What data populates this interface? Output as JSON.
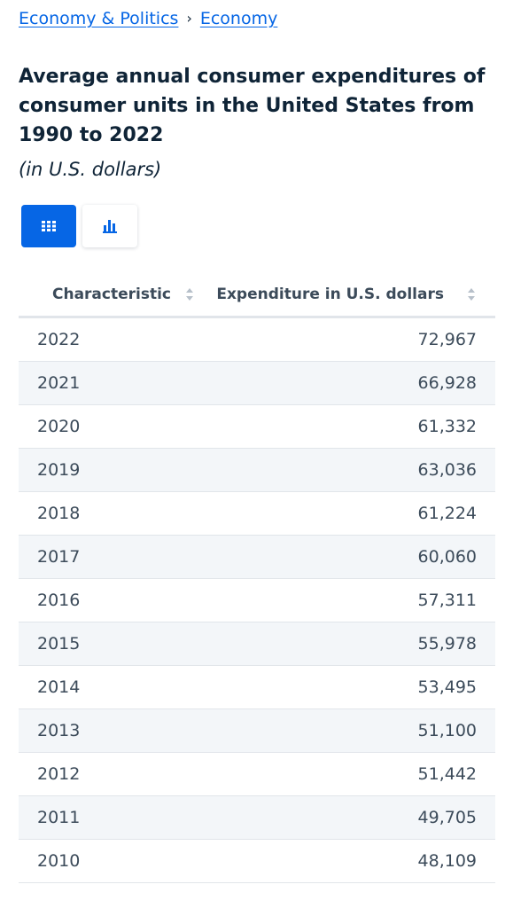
{
  "breadcrumb": {
    "items": [
      "Economy & Politics",
      "Economy"
    ],
    "separator": "›"
  },
  "title": "Average annual consumer expenditures of consumer units in the United States from 1990 to 2022",
  "subtitle": "(in U.S. dollars)",
  "view_toggle": {
    "active": "table",
    "buttons": [
      {
        "icon": "table-grid-icon"
      },
      {
        "icon": "bar-chart-icon"
      }
    ]
  },
  "colors": {
    "accent": "#0666e5",
    "text": "#0f2437",
    "row_alt": "#f3f6f9"
  },
  "table": {
    "headers": [
      "Characteristic",
      "Expenditure in U.S. dollars"
    ],
    "rows": [
      {
        "year": "2022",
        "value": "72,967"
      },
      {
        "year": "2021",
        "value": "66,928"
      },
      {
        "year": "2020",
        "value": "61,332"
      },
      {
        "year": "2019",
        "value": "63,036"
      },
      {
        "year": "2018",
        "value": "61,224"
      },
      {
        "year": "2017",
        "value": "60,060"
      },
      {
        "year": "2016",
        "value": "57,311"
      },
      {
        "year": "2015",
        "value": "55,978"
      },
      {
        "year": "2014",
        "value": "53,495"
      },
      {
        "year": "2013",
        "value": "51,100"
      },
      {
        "year": "2012",
        "value": "51,442"
      },
      {
        "year": "2011",
        "value": "49,705"
      },
      {
        "year": "2010",
        "value": "48,109"
      }
    ]
  }
}
